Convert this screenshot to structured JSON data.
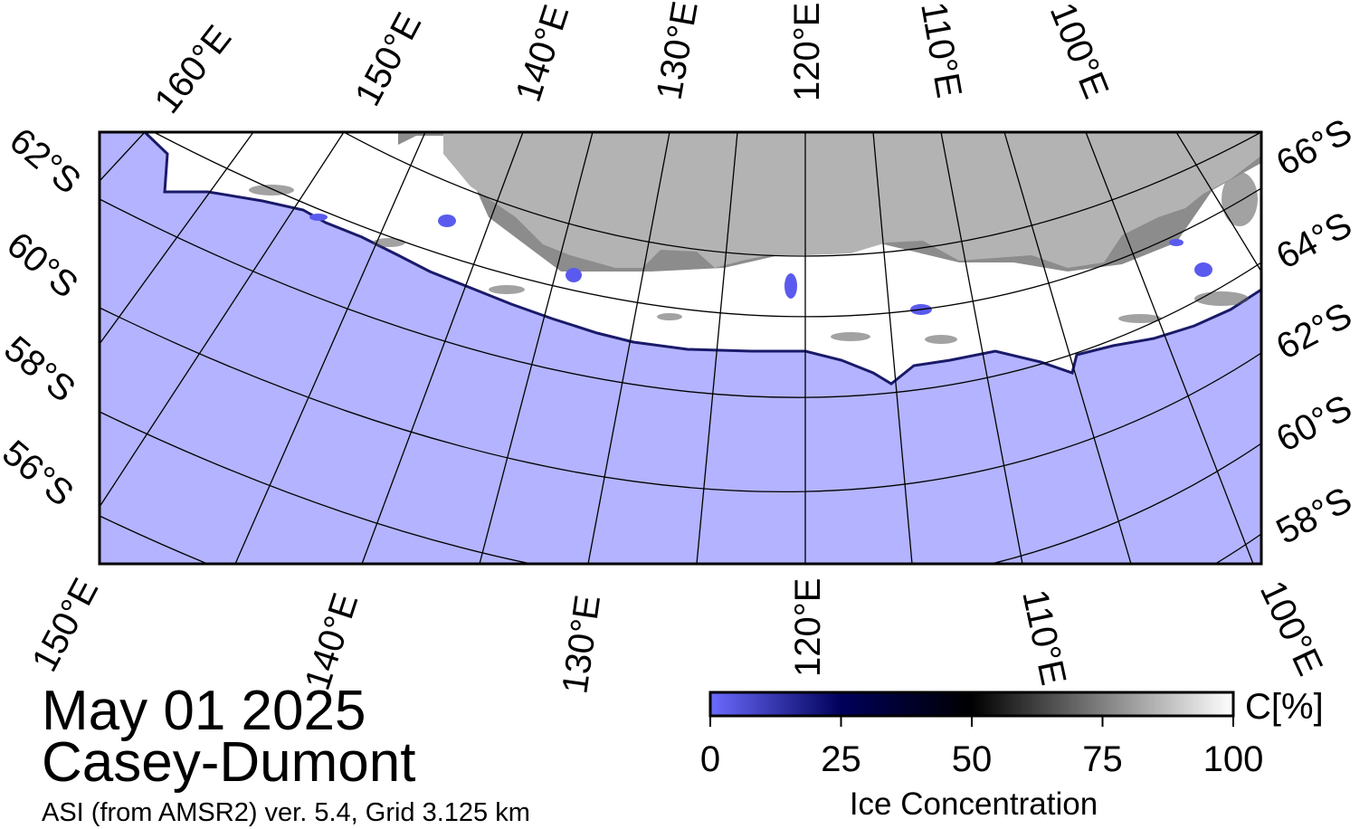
{
  "map": {
    "date": "May 01 2025",
    "region": "Casey-Dumont",
    "product": "ASI (from AMSR2) ver. 5.4,  Grid 3.125 km",
    "colors": {
      "open_water": "#b3b3ff",
      "land": "#b3b3b3",
      "ice_shelf": "#8c8c8c",
      "ice_full": "#ffffff",
      "frame": "#000000"
    },
    "top_lon_labels": [
      "160°E",
      "150°E",
      "140°E",
      "130°E",
      "120°E",
      "110°E",
      "100°E"
    ],
    "bottom_lon_labels": [
      "150°E",
      "140°E",
      "130°E",
      "120°E",
      "110°E",
      "100°E"
    ],
    "left_lat_labels": [
      "62°S",
      "60°S",
      "58°S",
      "56°S"
    ],
    "right_lat_labels": [
      "66°S",
      "64°S",
      "62°S",
      "60°S",
      "58°S"
    ]
  },
  "colorbar": {
    "title": "Ice Concentration",
    "unit": "C[%]",
    "ticks": [
      "0",
      "25",
      "50",
      "75",
      "100"
    ],
    "tick_values": [
      0,
      25,
      50,
      75,
      100
    ],
    "gradient_colors": [
      "#6b6bff",
      "#00005a",
      "#000000",
      "#808080",
      "#ffffff"
    ]
  }
}
